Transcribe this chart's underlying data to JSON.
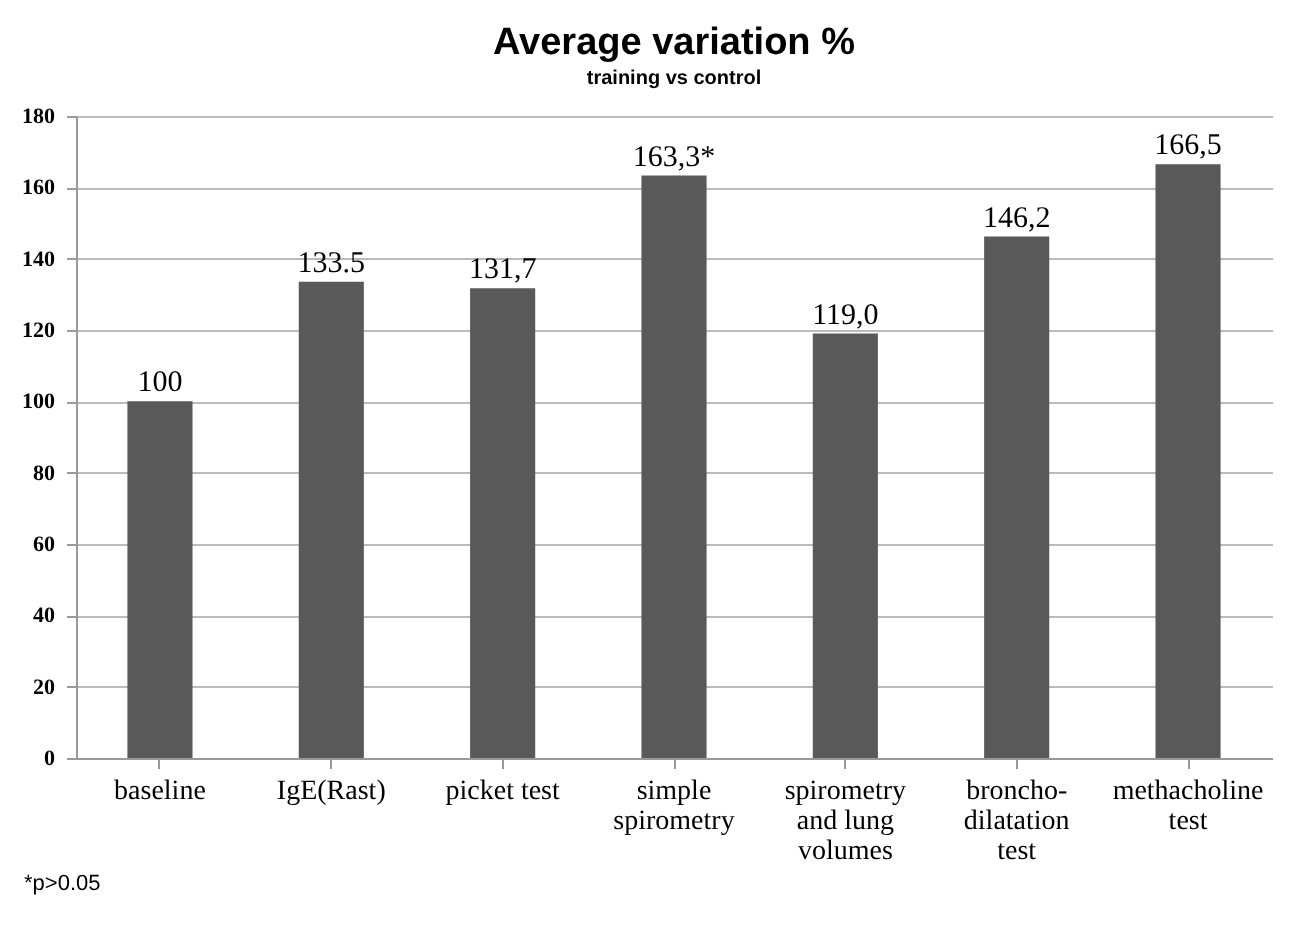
{
  "chart_data": {
    "type": "bar",
    "title": "Average variation %",
    "subtitle": "training vs control",
    "categories": [
      "baseline",
      "IgE(Rast)",
      "picket test",
      "simple spirometry",
      "spirometry and lung volumes",
      "broncho-dilatation test",
      "methacholine test"
    ],
    "values": [
      100,
      133.5,
      131.7,
      163.3,
      119,
      146.2,
      166.5
    ],
    "value_labels": [
      "100",
      "133.5",
      "131,7",
      "163,3*",
      "119,0",
      "146,2",
      "166,5"
    ],
    "color": "#595959",
    "ylim": [
      0,
      180
    ],
    "yticks": [
      0,
      20,
      40,
      60,
      80,
      100,
      120,
      140,
      160,
      180
    ],
    "grid": "y",
    "annotations": [
      "*p>0.05"
    ]
  }
}
